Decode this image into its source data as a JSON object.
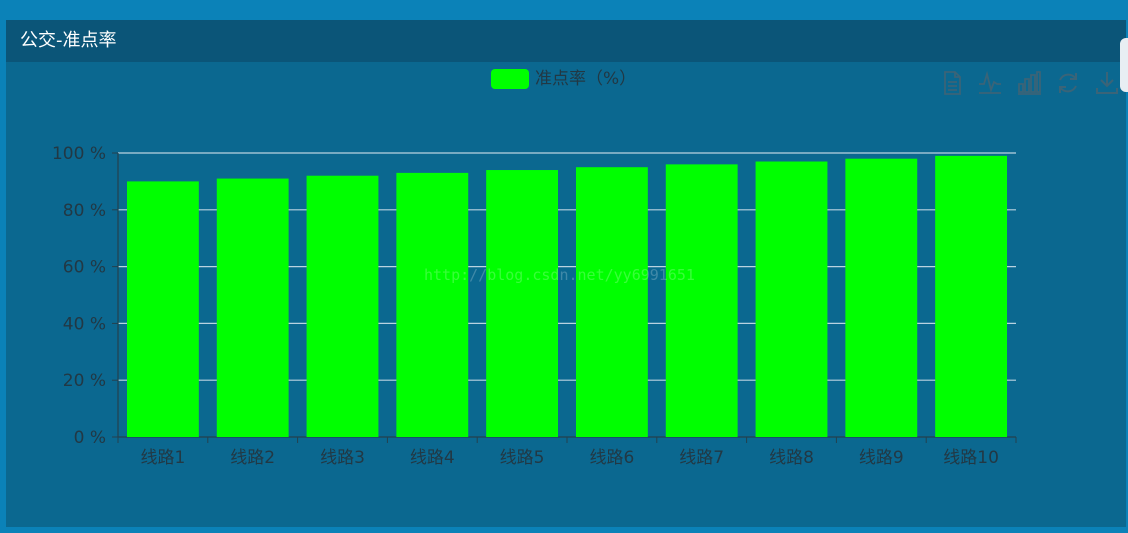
{
  "panel": {
    "title": "公交-准点率"
  },
  "legend": {
    "label": "准点率（%）",
    "color": "#00ff00"
  },
  "toolbox": [
    {
      "name": "data-view-icon"
    },
    {
      "name": "line-chart-icon"
    },
    {
      "name": "bar-chart-icon"
    },
    {
      "name": "restore-icon"
    },
    {
      "name": "download-icon"
    }
  ],
  "watermark": "http://blog.csdn.net/yy6991651",
  "colors": {
    "background": "#0b82b8",
    "panel": "#0b6890",
    "header": "#0b5578",
    "bar": "#00ff00",
    "axis_text": "#223844",
    "grid": "#b9d3e0",
    "icon": "#3a6478"
  },
  "chart_data": {
    "type": "bar",
    "categories": [
      "线路1",
      "线路2",
      "线路3",
      "线路4",
      "线路5",
      "线路6",
      "线路7",
      "线路8",
      "线路9",
      "线路10"
    ],
    "series": [
      {
        "name": "准点率（%）",
        "values": [
          90,
          91,
          92,
          93,
          94,
          95,
          96,
          97,
          98,
          99
        ]
      }
    ],
    "yticks": [
      "0 %",
      "20 %",
      "40 %",
      "60 %",
      "80 %",
      "100 %"
    ],
    "ylim": [
      0,
      100
    ],
    "grid": true,
    "legend_position": "top-center"
  }
}
